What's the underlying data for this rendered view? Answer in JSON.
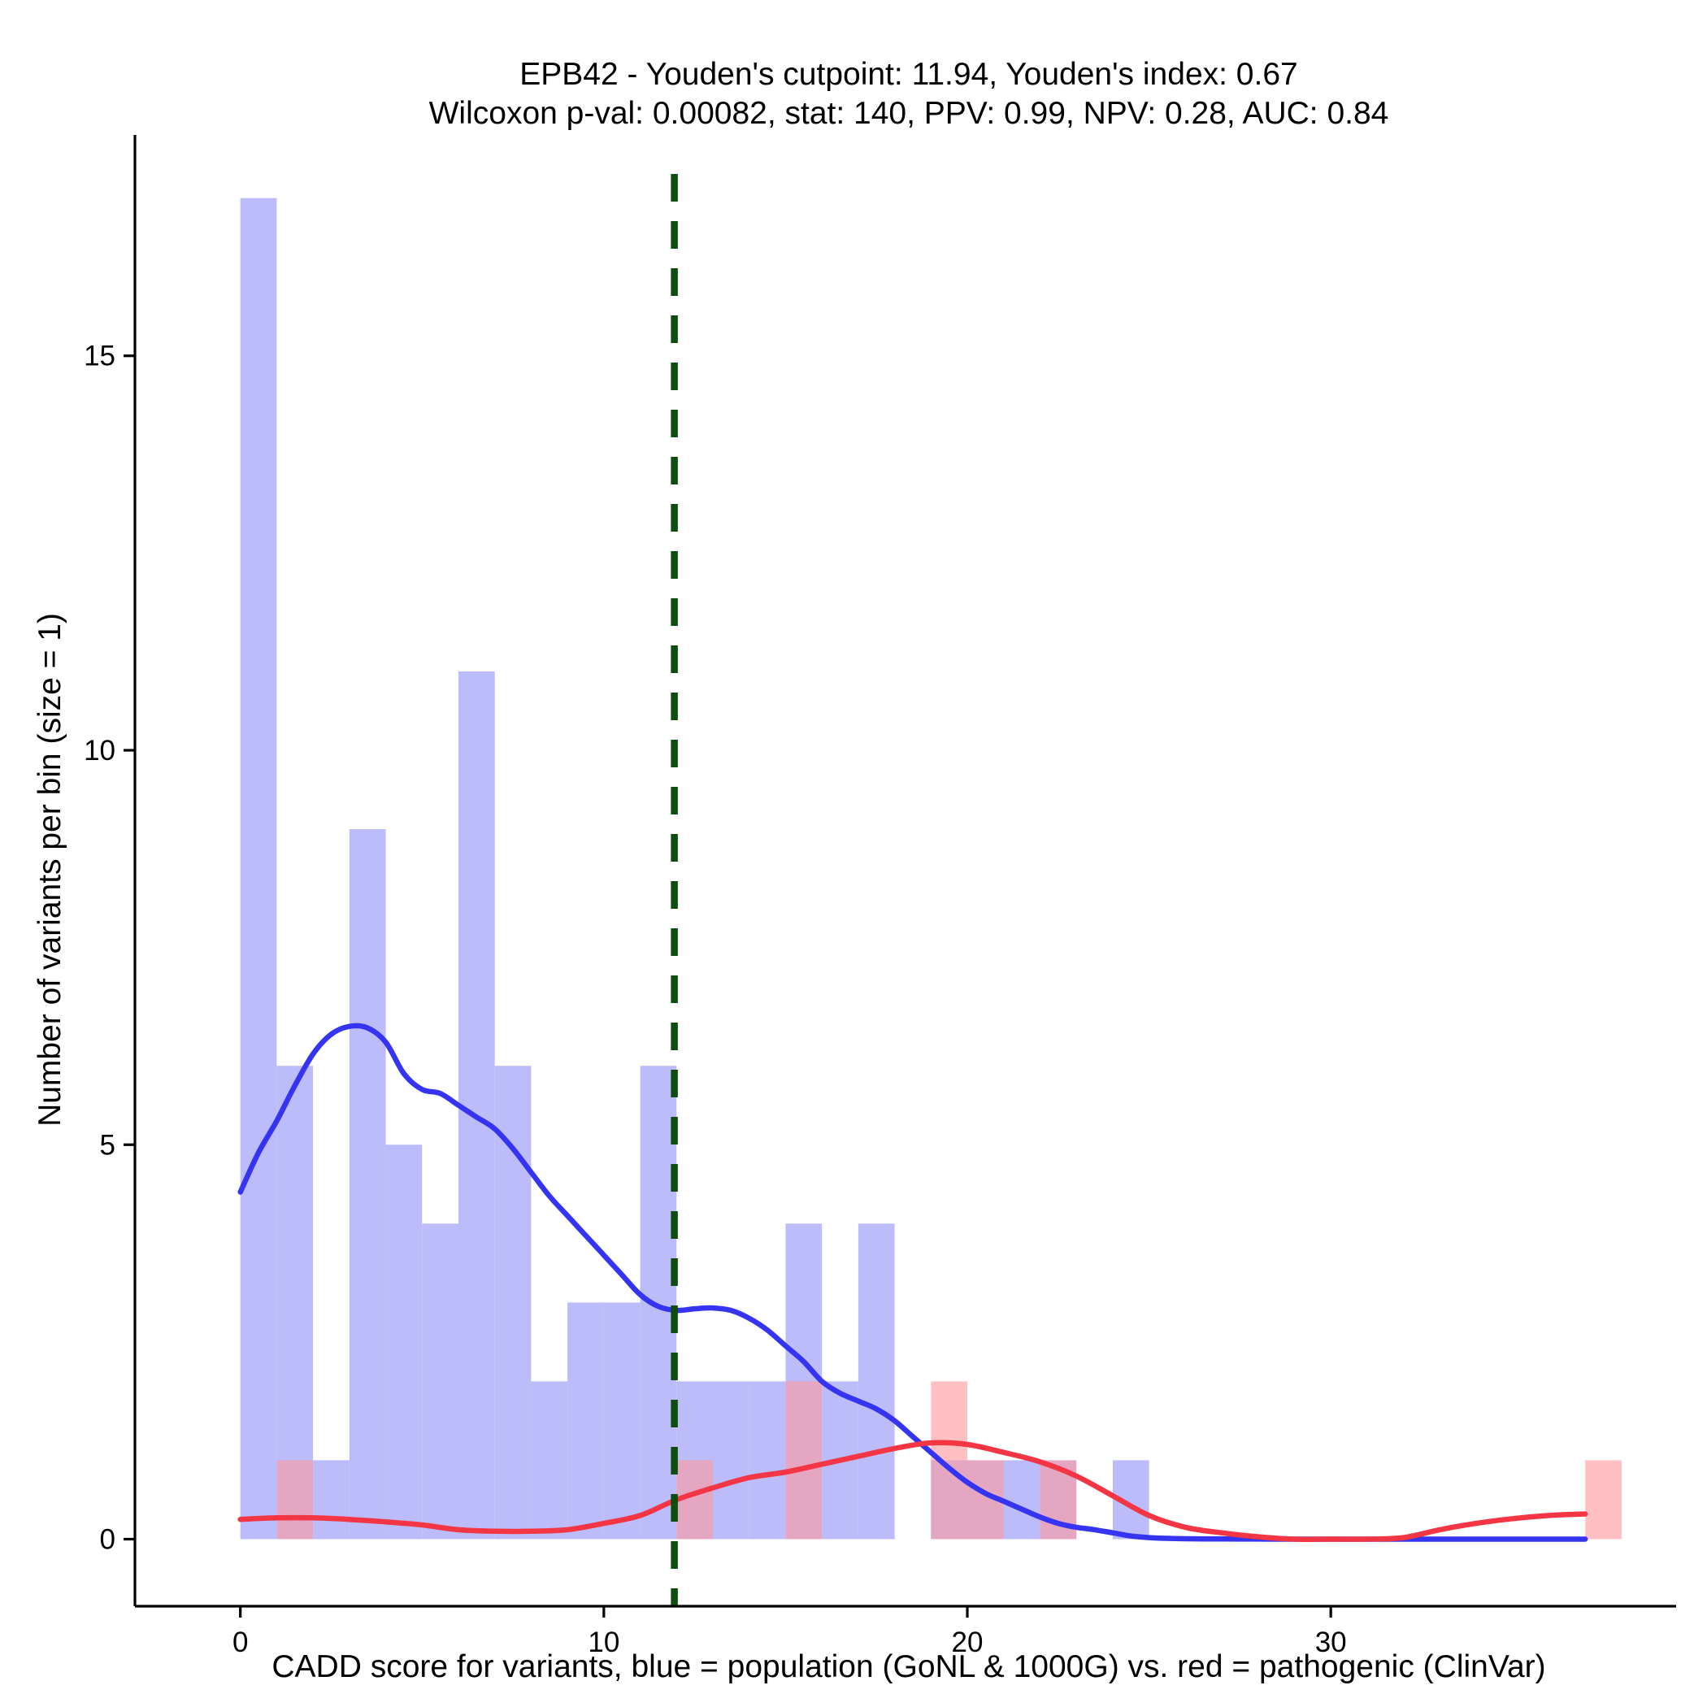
{
  "chart_data": {
    "type": "bar",
    "title_line1": "EPB42 - Youden's cutpoint: 11.94, Youden's index: 0.67",
    "title_line2": "Wilcoxon p-val: 0.00082, stat: 140, PPV: 0.99, NPV: 0.28, AUC: 0.84",
    "xlabel": "CADD score for variants, blue = population (GoNL & 1000G) vs. red = pathogenic (ClinVar)",
    "ylabel": "Number of variants per bin (size = 1)",
    "xlim": [
      -2.9,
      39.5
    ],
    "ylim": [
      -0.85,
      17.8
    ],
    "x_ticks": [
      0,
      10,
      20,
      30
    ],
    "x_tick_labels": [
      "0",
      "10",
      "20",
      "30"
    ],
    "y_ticks": [
      0,
      5,
      10,
      15
    ],
    "y_tick_labels": [
      "0",
      "5",
      "10",
      "15"
    ],
    "bin_width": 1,
    "cutpoint": 11.94,
    "colors": {
      "population_bar": "#bcbcfa",
      "pathogenic_bar": "#ff9aa0",
      "population_line": "#3434f2",
      "pathogenic_line": "#f43644",
      "cutpoint_line": "#0d4d0d"
    },
    "series": [
      {
        "name": "population (GoNL & 1000G)",
        "bin_starts": [
          0,
          1,
          2,
          3,
          4,
          5,
          6,
          7,
          8,
          9,
          10,
          11,
          12,
          13,
          14,
          15,
          16,
          17,
          18,
          19,
          20,
          21,
          22,
          23,
          24,
          25,
          26,
          27,
          28,
          29,
          30,
          31,
          32,
          33,
          34,
          35,
          36,
          37
        ],
        "values": [
          17,
          6,
          1,
          9,
          5,
          4,
          11,
          6,
          2,
          3,
          3,
          6,
          2,
          2,
          2,
          4,
          2,
          4,
          0,
          1,
          1,
          1,
          1,
          0,
          1,
          0,
          0,
          0,
          0,
          0,
          0,
          0,
          0,
          0,
          0,
          0,
          0,
          0
        ],
        "density_x": [
          0,
          0.5,
          1,
          1.5,
          2,
          2.5,
          3,
          3.5,
          4,
          4.5,
          5,
          5.5,
          6,
          6.5,
          7,
          7.5,
          8,
          8.5,
          9,
          9.5,
          10,
          10.5,
          11,
          11.5,
          12,
          12.5,
          13,
          13.5,
          14,
          14.5,
          15,
          15.5,
          16,
          16.5,
          17,
          17.5,
          18,
          18.5,
          19,
          19.5,
          20,
          20.5,
          21,
          21.5,
          22,
          22.5,
          23,
          23.5,
          24,
          24.5,
          25,
          25.5,
          26,
          26.5,
          27,
          28,
          29,
          30,
          31,
          32,
          33,
          34,
          35,
          36,
          37
        ],
        "density_y": [
          4.4,
          4.9,
          5.3,
          5.75,
          6.15,
          6.4,
          6.5,
          6.48,
          6.3,
          5.9,
          5.7,
          5.65,
          5.5,
          5.35,
          5.2,
          4.95,
          4.65,
          4.35,
          4.1,
          3.85,
          3.6,
          3.35,
          3.1,
          2.95,
          2.9,
          2.92,
          2.93,
          2.9,
          2.8,
          2.65,
          2.45,
          2.25,
          2.0,
          1.85,
          1.75,
          1.65,
          1.5,
          1.3,
          1.1,
          0.9,
          0.72,
          0.58,
          0.48,
          0.38,
          0.28,
          0.2,
          0.15,
          0.12,
          0.08,
          0.04,
          0.02,
          0.01,
          0.005,
          0.003,
          0.002,
          0.001,
          0,
          0,
          0,
          0,
          0,
          0,
          0,
          0,
          0
        ]
      },
      {
        "name": "pathogenic (ClinVar)",
        "bin_starts": [
          0,
          1,
          2,
          3,
          4,
          5,
          6,
          7,
          8,
          9,
          10,
          11,
          12,
          13,
          14,
          15,
          16,
          17,
          18,
          19,
          20,
          21,
          22,
          23,
          24,
          25,
          26,
          27,
          28,
          29,
          30,
          31,
          32,
          33,
          34,
          35,
          36,
          37
        ],
        "values": [
          0,
          1,
          0,
          0,
          0,
          0,
          0,
          0,
          0,
          0,
          0,
          0,
          1,
          0,
          0,
          2,
          0,
          0,
          0,
          2,
          1,
          0,
          1,
          0,
          0,
          0,
          0,
          0,
          0,
          0,
          0,
          0,
          0,
          0,
          0,
          0,
          0,
          1
        ],
        "density_x": [
          0,
          1,
          2,
          3,
          4,
          5,
          6,
          7,
          8,
          9,
          10,
          11,
          12,
          13,
          14,
          15,
          16,
          17,
          18,
          19,
          20,
          21,
          22,
          23,
          24,
          25,
          26,
          27,
          28,
          29,
          30,
          31,
          32,
          33,
          34,
          35,
          36,
          37
        ],
        "density_y": [
          0.25,
          0.27,
          0.27,
          0.25,
          0.22,
          0.18,
          0.12,
          0.1,
          0.1,
          0.12,
          0.2,
          0.3,
          0.5,
          0.65,
          0.78,
          0.85,
          0.95,
          1.05,
          1.15,
          1.22,
          1.2,
          1.1,
          0.98,
          0.8,
          0.55,
          0.3,
          0.15,
          0.08,
          0.03,
          0,
          0,
          0,
          0.02,
          0.12,
          0.2,
          0.26,
          0.3,
          0.32
        ]
      }
    ]
  }
}
